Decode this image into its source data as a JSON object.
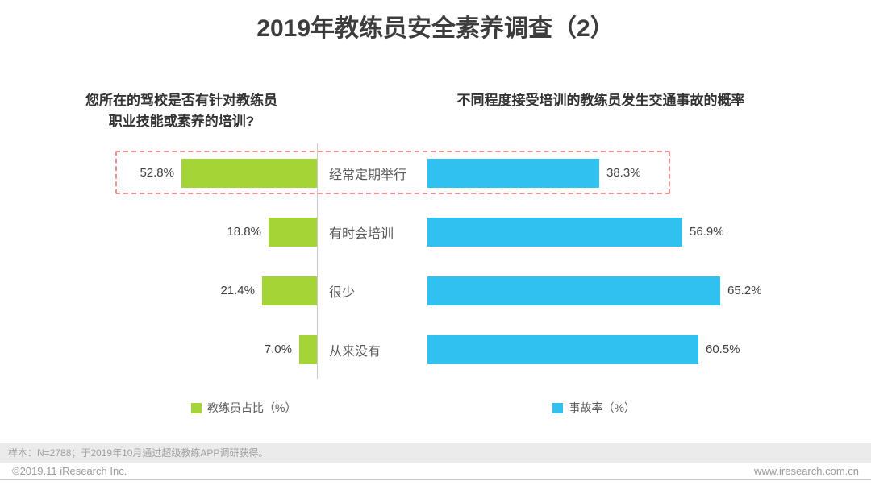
{
  "header": {
    "title": "2019年教练员安全素养调查（2）"
  },
  "left_panel": {
    "title_line1": "您所在的驾校是否有针对教练员",
    "title_line2": "职业技能或素养的培训?",
    "legend_label": "教练员占比（%）"
  },
  "right_panel": {
    "title": "不同程度接受培训的教练员发生交通事故的概率",
    "legend_label": "事故率（%）"
  },
  "chart_data": {
    "type": "bar",
    "orientation": "horizontal-tornado",
    "categories": [
      "经常定期举行",
      "有时会培训",
      "很少",
      "从来没有"
    ],
    "series": [
      {
        "name": "教练员占比（%）",
        "side": "left",
        "values": [
          52.8,
          18.8,
          21.4,
          7.0
        ],
        "unit": "%",
        "color": "#a4d435"
      },
      {
        "name": "事故率（%）",
        "side": "right",
        "values": [
          38.3,
          56.9,
          65.2,
          60.5
        ],
        "unit": "%",
        "color": "#30c1f0"
      }
    ],
    "highlighted_category": "经常定期举行",
    "highlight_color": "#f0908e",
    "legend_position": "bottom",
    "grid": false
  },
  "footer": {
    "sample_note": "样本：N=2788；于2019年10月通过超级教练APP调研获得。",
    "copyright": "©2019.11 iResearch Inc.",
    "website": "www.iresearch.com.cn"
  }
}
